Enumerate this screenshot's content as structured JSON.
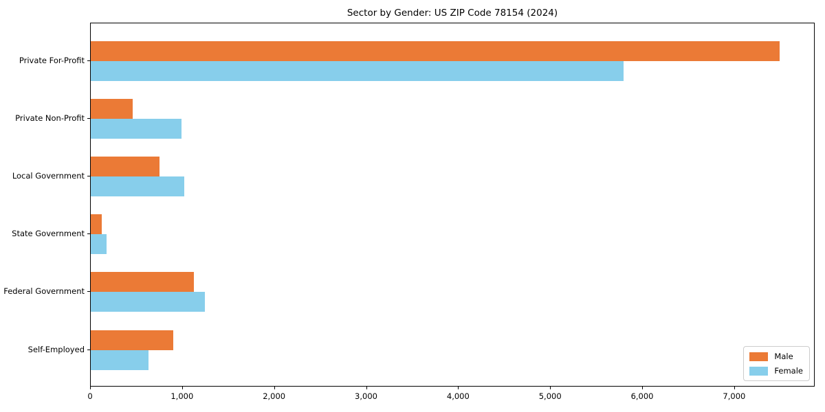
{
  "chart_data": {
    "type": "bar",
    "orientation": "horizontal",
    "title": "Sector by Gender: US ZIP Code 78154 (2024)",
    "categories": [
      "Private For-Profit",
      "Private Non-Profit",
      "Local Government",
      "State Government",
      "Federal Government",
      "Self-Employed"
    ],
    "series": [
      {
        "name": "Male",
        "color": "#EB7A36",
        "values": [
          7500,
          460,
          750,
          120,
          1120,
          900
        ]
      },
      {
        "name": "Female",
        "color": "#87CEEB",
        "values": [
          5800,
          990,
          1020,
          170,
          1240,
          630
        ]
      }
    ],
    "xlabel": "",
    "ylabel": "",
    "xlim": [
      0,
      7875
    ],
    "x_ticks": [
      {
        "value": 0,
        "label": "0"
      },
      {
        "value": 1000,
        "label": "1,000"
      },
      {
        "value": 2000,
        "label": "2,000"
      },
      {
        "value": 3000,
        "label": "3,000"
      },
      {
        "value": 4000,
        "label": "4,000"
      },
      {
        "value": 5000,
        "label": "5,000"
      },
      {
        "value": 6000,
        "label": "6,000"
      },
      {
        "value": 7000,
        "label": "7,000"
      }
    ],
    "grid": false,
    "legend_position": "lower right",
    "colors": {
      "axis": "#000000",
      "legend_border": "#cccccc",
      "background": "#ffffff"
    }
  }
}
